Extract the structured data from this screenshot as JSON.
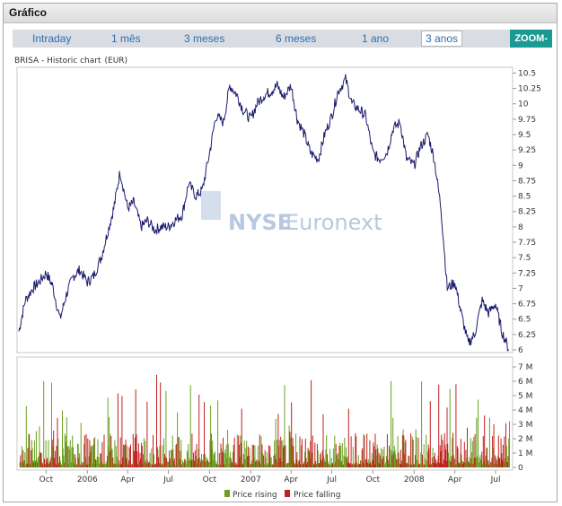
{
  "panel": {
    "title": "Gráfico"
  },
  "periods": [
    {
      "label": "Intraday",
      "active": false
    },
    {
      "label": "1 mês",
      "active": false
    },
    {
      "label": "3 meses",
      "active": false
    },
    {
      "label": "6 meses",
      "active": false
    },
    {
      "label": "1 ano",
      "active": false
    },
    {
      "label": "3 anos",
      "active": true
    }
  ],
  "zoom_label": "ZOOM-",
  "watermark": {
    "text1": "NYSE",
    "text2": "Euronext",
    "suffix": "."
  },
  "colors": {
    "line": "#1c1c6e",
    "rising": "#6aa121",
    "falling": "#c0211f",
    "watermark": "#b8c8e0",
    "accent": "#1a9a92",
    "link": "#2a6fb2"
  },
  "chart_data": [
    {
      "type": "line",
      "title": "BRISA - Historic chart",
      "subtitle": "(EUR)",
      "ylim": [
        6.0,
        10.55
      ],
      "yticks": [
        6,
        6.25,
        6.5,
        6.75,
        7,
        7.25,
        7.5,
        7.75,
        8,
        8.25,
        8.5,
        8.75,
        9,
        9.25,
        9.5,
        9.75,
        10,
        10.25,
        10.5
      ],
      "ytick_labels": [
        "6",
        "6.25",
        "6.5",
        "6.75",
        "7",
        "7.25",
        "7.5",
        "7.75",
        "8",
        "8.25",
        "8.5",
        "8.75",
        "9",
        "9.25",
        "9.5",
        "9.75",
        "10",
        "10.25",
        "10.5"
      ],
      "xlim": [
        "2005-08-01",
        "2008-07-31"
      ],
      "x_ticks": [
        {
          "date": "2005-10-01",
          "label": "Oct"
        },
        {
          "date": "2006-01-01",
          "label": "2006"
        },
        {
          "date": "2006-04-01",
          "label": "Apr"
        },
        {
          "date": "2006-07-01",
          "label": "Jul"
        },
        {
          "date": "2006-10-01",
          "label": "Oct"
        },
        {
          "date": "2007-01-01",
          "label": "2007"
        },
        {
          "date": "2007-04-01",
          "label": "Apr"
        },
        {
          "date": "2007-07-01",
          "label": "Jul"
        },
        {
          "date": "2007-10-01",
          "label": "Oct"
        },
        {
          "date": "2008-01-01",
          "label": "2008"
        },
        {
          "date": "2008-04-01",
          "label": "Apr"
        },
        {
          "date": "2008-07-01",
          "label": "Jul"
        }
      ],
      "x": [
        "2005-08-01",
        "2005-08-15",
        "2005-09-01",
        "2005-09-15",
        "2005-10-01",
        "2005-10-15",
        "2005-11-01",
        "2005-11-15",
        "2005-12-01",
        "2005-12-15",
        "2006-01-01",
        "2006-01-15",
        "2006-02-01",
        "2006-02-15",
        "2006-03-01",
        "2006-03-15",
        "2006-04-01",
        "2006-04-15",
        "2006-05-01",
        "2006-05-15",
        "2006-06-01",
        "2006-06-15",
        "2006-07-01",
        "2006-07-15",
        "2006-08-01",
        "2006-08-15",
        "2006-09-01",
        "2006-09-15",
        "2006-10-01",
        "2006-10-15",
        "2006-11-01",
        "2006-11-15",
        "2006-12-01",
        "2006-12-15",
        "2007-01-01",
        "2007-01-15",
        "2007-02-01",
        "2007-02-15",
        "2007-03-01",
        "2007-03-15",
        "2007-04-01",
        "2007-04-15",
        "2007-05-01",
        "2007-05-15",
        "2007-06-01",
        "2007-06-15",
        "2007-07-01",
        "2007-07-15",
        "2007-08-01",
        "2007-08-15",
        "2007-09-01",
        "2007-09-15",
        "2007-10-01",
        "2007-10-15",
        "2007-11-01",
        "2007-11-15",
        "2007-12-01",
        "2007-12-15",
        "2008-01-01",
        "2008-01-15",
        "2008-02-01",
        "2008-02-15",
        "2008-03-01",
        "2008-03-15",
        "2008-04-01",
        "2008-04-15",
        "2008-05-01",
        "2008-05-15",
        "2008-06-01",
        "2008-06-15",
        "2008-07-01",
        "2008-07-15",
        "2008-07-31"
      ],
      "values": [
        6.3,
        6.8,
        7.0,
        7.1,
        7.25,
        7.05,
        6.5,
        6.9,
        7.2,
        7.3,
        7.1,
        7.2,
        7.5,
        7.9,
        8.3,
        8.9,
        8.3,
        8.4,
        8.0,
        8.1,
        7.95,
        8.0,
        8.0,
        8.1,
        8.2,
        8.7,
        8.5,
        8.6,
        9.2,
        9.8,
        9.7,
        10.3,
        10.15,
        9.9,
        9.75,
        10.0,
        10.15,
        10.2,
        10.3,
        10.1,
        10.3,
        9.75,
        9.5,
        9.2,
        9.1,
        9.5,
        9.8,
        10.2,
        10.4,
        10.0,
        9.9,
        9.8,
        9.2,
        9.1,
        9.2,
        9.6,
        9.7,
        9.1,
        9.0,
        9.3,
        9.5,
        9.1,
        8.3,
        7.0,
        7.1,
        6.6,
        6.1,
        6.25,
        6.8,
        6.6,
        6.75,
        6.3,
        6.0
      ]
    },
    {
      "type": "bar",
      "title": "Volume",
      "ylim": [
        0,
        7500000
      ],
      "ytick_labels": [
        "0",
        "1 M",
        "2 M",
        "3 M",
        "4 M",
        "5 M",
        "6 M",
        "7 M"
      ],
      "legend": [
        {
          "name": "Price rising",
          "color": "#6aa121"
        },
        {
          "name": "Price falling",
          "color": "#c0211f"
        }
      ]
    }
  ]
}
